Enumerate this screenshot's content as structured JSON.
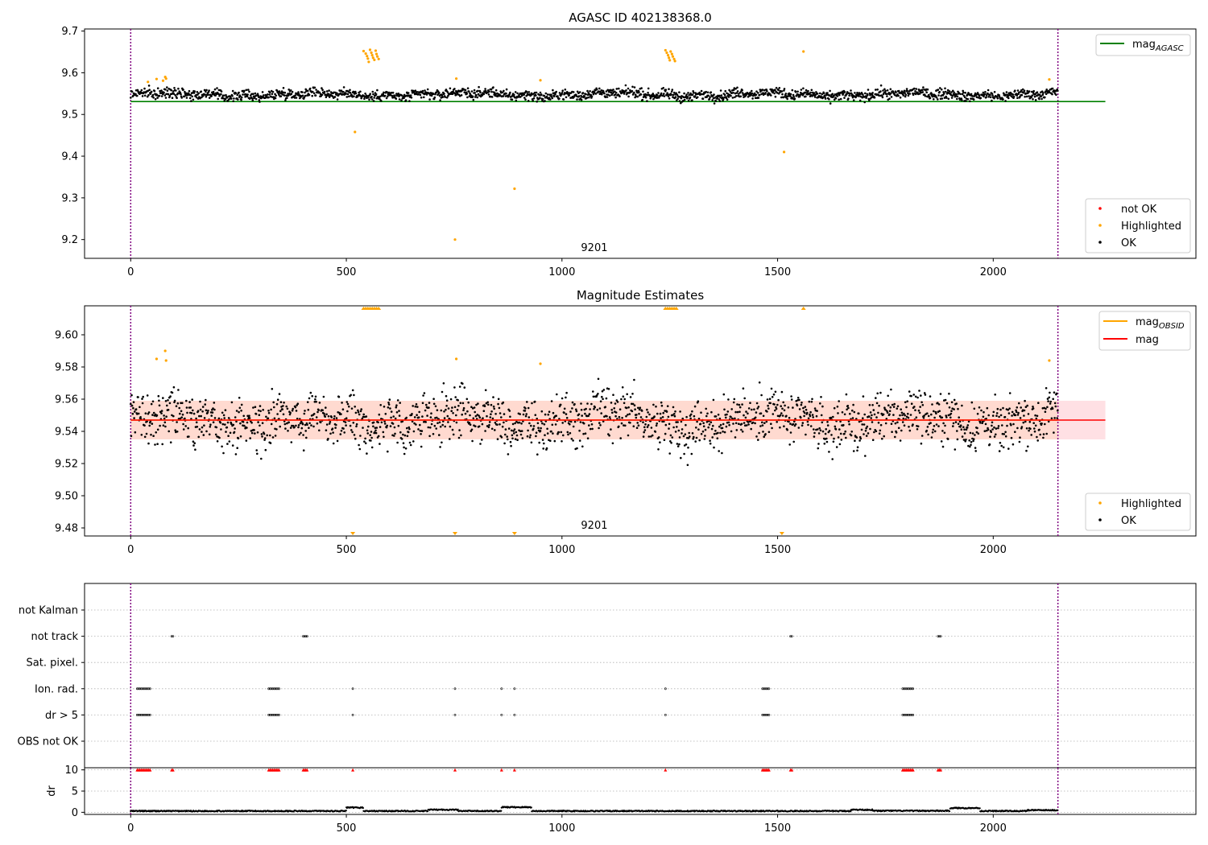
{
  "chart_data": [
    {
      "type": "scatter",
      "title": "AGASC ID 402138368.0",
      "xlim": [
        -107,
        2470
      ],
      "ylim": [
        9.155,
        9.705
      ],
      "xticks": [
        0,
        500,
        1000,
        1500,
        2000
      ],
      "yticks": [
        9.2,
        9.3,
        9.4,
        9.5,
        9.6,
        9.7
      ],
      "ytick_labels": [
        "9.2",
        "9.3",
        "9.4",
        "9.5",
        "9.6",
        "9.7"
      ],
      "obsid_label": "9201",
      "obsid_label_x": 1075,
      "vlines": [
        0,
        2150
      ],
      "mag_agasc": 9.531,
      "mag_agasc_range": [
        0,
        2260
      ],
      "ok_base": 9.548,
      "ok_spread": 0.012,
      "highlighted": [
        [
          40,
          9.578
        ],
        [
          60,
          9.585
        ],
        [
          75,
          9.581
        ],
        [
          80,
          9.59
        ],
        [
          82,
          9.586
        ],
        [
          520,
          9.458
        ],
        [
          752,
          9.2
        ],
        [
          755,
          9.586
        ],
        [
          890,
          9.322
        ],
        [
          950,
          9.582
        ],
        [
          1515,
          9.41
        ],
        [
          1560,
          9.651
        ],
        [
          2130,
          9.584
        ],
        [
          540,
          9.652
        ],
        [
          545,
          9.646
        ],
        [
          548,
          9.64
        ],
        [
          550,
          9.634
        ],
        [
          552,
          9.626
        ],
        [
          555,
          9.655
        ],
        [
          558,
          9.648
        ],
        [
          560,
          9.642
        ],
        [
          562,
          9.636
        ],
        [
          565,
          9.631
        ],
        [
          568,
          9.653
        ],
        [
          570,
          9.645
        ],
        [
          572,
          9.639
        ],
        [
          575,
          9.633
        ],
        [
          1240,
          9.654
        ],
        [
          1243,
          9.648
        ],
        [
          1246,
          9.642
        ],
        [
          1248,
          9.636
        ],
        [
          1250,
          9.63
        ],
        [
          1252,
          9.651
        ],
        [
          1255,
          9.645
        ],
        [
          1257,
          9.639
        ],
        [
          1260,
          9.633
        ],
        [
          1262,
          9.628
        ]
      ],
      "legend_upper": [
        {
          "label": "mag",
          "sub": "AGASC",
          "color": "#008000"
        }
      ],
      "legend_lower": [
        {
          "label": "not OK",
          "color": "#ff0000"
        },
        {
          "label": "Highlighted",
          "color": "#ffa500"
        },
        {
          "label": "OK",
          "color": "#000000"
        }
      ],
      "colors": {
        "ok": "#000000",
        "highlighted": "#ffa500",
        "not_ok": "#ff0000",
        "mag_agasc": "#008000",
        "vline": "#800080"
      }
    },
    {
      "type": "scatter",
      "title": "Magnitude Estimates",
      "xlim": [
        -107,
        2470
      ],
      "ylim": [
        9.475,
        9.618
      ],
      "xticks": [
        0,
        500,
        1000,
        1500,
        2000
      ],
      "yticks": [
        9.48,
        9.5,
        9.52,
        9.54,
        9.56,
        9.58,
        9.6
      ],
      "ytick_labels": [
        "9.48",
        "9.50",
        "9.52",
        "9.54",
        "9.56",
        "9.58",
        "9.60"
      ],
      "obsid_label": "9201",
      "obsid_label_x": 1075,
      "vlines": [
        0,
        2150
      ],
      "mag": 9.547,
      "mag_obsid": 9.547,
      "band": [
        9.535,
        9.559
      ],
      "band_range": [
        0,
        2260
      ],
      "highlighted": [
        [
          60,
          9.585
        ],
        [
          80,
          9.59
        ],
        [
          82,
          9.584
        ],
        [
          755,
          9.585
        ],
        [
          950,
          9.582
        ],
        [
          2130,
          9.584
        ]
      ],
      "clipped_up": [
        540,
        545,
        550,
        555,
        560,
        565,
        570,
        575,
        1240,
        1245,
        1250,
        1255,
        1260,
        1265,
        1560
      ],
      "clipped_down": [
        515,
        752,
        890,
        1510
      ],
      "legend_upper": [
        {
          "label": "mag",
          "sub": "OBSID",
          "color": "#ffa500"
        },
        {
          "label": "mag",
          "sub": "",
          "color": "#ff0000"
        }
      ],
      "legend_lower": [
        {
          "label": "Highlighted",
          "color": "#ffa500"
        },
        {
          "label": "OK",
          "color": "#000000"
        }
      ],
      "colors": {
        "ok": "#000000",
        "highlighted": "#ffa500",
        "mag": "#ff0000",
        "mag_obsid": "#ffa500",
        "band": "#ffdad0",
        "band_tail": "#ffe0e4"
      }
    },
    {
      "type": "scatter",
      "title": "",
      "xlim": [
        -107,
        2470
      ],
      "flag_categories": [
        "not Kalman",
        "not track",
        "Sat. pixel.",
        "Ion. rad.",
        "dr > 5",
        "OBS not OK"
      ],
      "flags": {
        "not track": [
          [
            95,
            100
          ],
          [
            400,
            410
          ],
          [
            1530,
            1535
          ],
          [
            1872,
            1880
          ]
        ],
        "Ion. rad.": [
          [
            15,
            45
          ],
          [
            320,
            345
          ],
          [
            515,
            515
          ],
          [
            752,
            752
          ],
          [
            860,
            860
          ],
          [
            890,
            890
          ],
          [
            1240,
            1240
          ],
          [
            1465,
            1480
          ],
          [
            1790,
            1815
          ]
        ],
        "dr > 5": [
          [
            15,
            45
          ],
          [
            320,
            345
          ],
          [
            515,
            515
          ],
          [
            752,
            752
          ],
          [
            860,
            860
          ],
          [
            890,
            890
          ],
          [
            1240,
            1240
          ],
          [
            1465,
            1480
          ],
          [
            1790,
            1815
          ]
        ]
      },
      "vlines": [
        0,
        2150
      ]
    },
    {
      "type": "scatter",
      "title": "",
      "xlim": [
        -107,
        2470
      ],
      "ylim": [
        -0.5,
        10.5
      ],
      "xticks": [
        0,
        500,
        1000,
        1500,
        2000
      ],
      "yticks": [
        0,
        5,
        10
      ],
      "ytick_labels": [
        "0",
        "5",
        "10"
      ],
      "ylabel": "dr",
      "clipped_red": [
        [
          15,
          45
        ],
        [
          95,
          100
        ],
        [
          320,
          345
        ],
        [
          400,
          410
        ],
        [
          515,
          515
        ],
        [
          752,
          752
        ],
        [
          860,
          860
        ],
        [
          890,
          890
        ],
        [
          1240,
          1240
        ],
        [
          1465,
          1480
        ],
        [
          1530,
          1535
        ],
        [
          1790,
          1815
        ],
        [
          1872,
          1880
        ]
      ],
      "dr_segments": [
        {
          "from": 0,
          "to": 500,
          "level": 0.3
        },
        {
          "from": 500,
          "to": 540,
          "level": 1.1
        },
        {
          "from": 540,
          "to": 690,
          "level": 0.3
        },
        {
          "from": 690,
          "to": 760,
          "level": 0.6
        },
        {
          "from": 760,
          "to": 860,
          "level": 0.3
        },
        {
          "from": 860,
          "to": 930,
          "level": 1.2
        },
        {
          "from": 930,
          "to": 1670,
          "level": 0.3
        },
        {
          "from": 1670,
          "to": 1720,
          "level": 0.6
        },
        {
          "from": 1720,
          "to": 1900,
          "level": 0.35
        },
        {
          "from": 1900,
          "to": 1970,
          "level": 1.0
        },
        {
          "from": 1970,
          "to": 2080,
          "level": 0.3
        },
        {
          "from": 2080,
          "to": 2150,
          "level": 0.5
        }
      ],
      "vlines": [
        0,
        2150
      ]
    }
  ]
}
